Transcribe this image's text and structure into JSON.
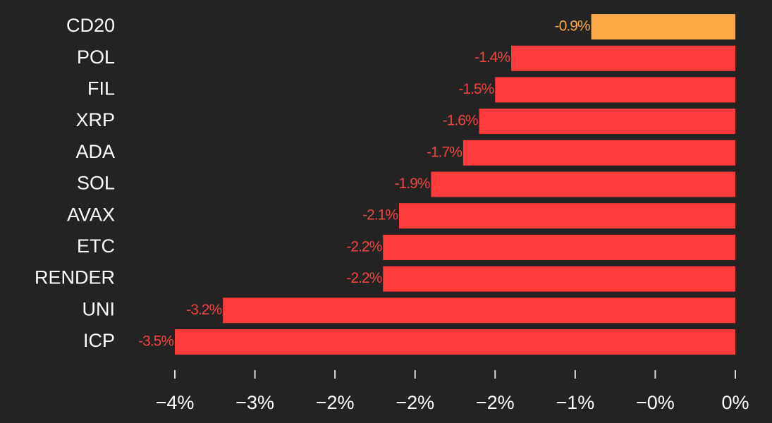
{
  "chart_data": {
    "type": "hbar",
    "categories": [
      "CD20",
      "POL",
      "FIL",
      "XRP",
      "ADA",
      "SOL",
      "AVAX",
      "ETC",
      "RENDER",
      "UNI",
      "ICP"
    ],
    "values": [
      -0.9,
      -1.4,
      -1.5,
      -1.6,
      -1.7,
      -1.9,
      -2.1,
      -2.2,
      -2.2,
      -3.2,
      -3.5
    ],
    "value_labels": [
      "-0.9%",
      "-1.4%",
      "-1.5%",
      "-1.6%",
      "-1.7%",
      "-1.9%",
      "-2.1%",
      "-2.2%",
      "-2.2%",
      "-3.2%",
      "-3.5%"
    ],
    "colors": [
      "#f9a845",
      "#ff3b3b",
      "#ff3b3b",
      "#ff3b3b",
      "#ff3b3b",
      "#ff3b3b",
      "#ff3b3b",
      "#ff3b3b",
      "#ff3b3b",
      "#ff3b3b",
      "#ff3b3b"
    ],
    "xlim": [
      -3.5,
      0
    ],
    "xticks": [
      {
        "value": -3.5,
        "label": "−4%"
      },
      {
        "value": -3,
        "label": "−3%"
      },
      {
        "value": -2.5,
        "label": "−2%"
      },
      {
        "value": -2,
        "label": "−2%"
      },
      {
        "value": -1.5,
        "label": "−2%"
      },
      {
        "value": -1,
        "label": "−1%"
      },
      {
        "value": -0.5,
        "label": "−0%"
      },
      {
        "value": 0,
        "label": "0%"
      }
    ]
  }
}
